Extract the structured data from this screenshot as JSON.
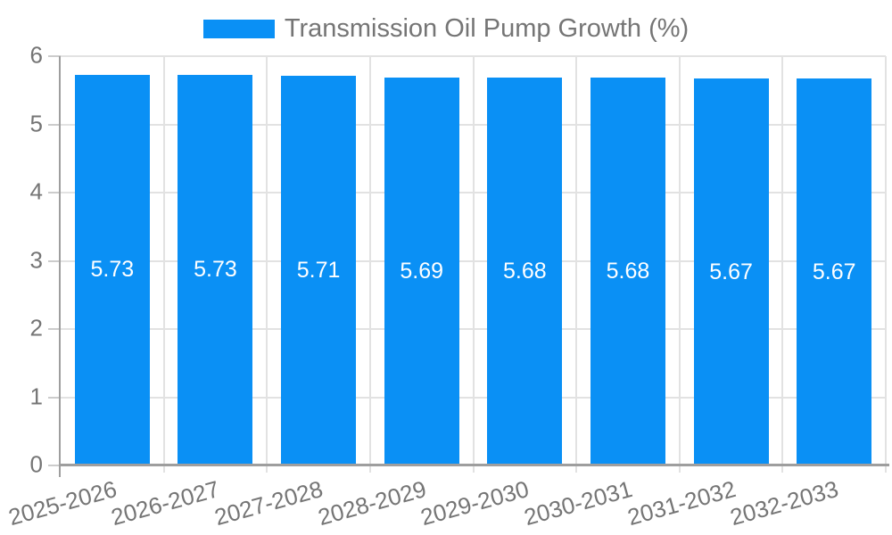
{
  "legend": {
    "label": "Transmission Oil Pump Growth (%)"
  },
  "chart_data": {
    "type": "bar",
    "title": "Transmission Oil Pump Growth (%)",
    "categories": [
      "2025-2026",
      "2026-2027",
      "2027-2028",
      "2028-2029",
      "2029-2030",
      "2030-2031",
      "2031-2032",
      "2032-2033"
    ],
    "values": [
      5.73,
      5.73,
      5.71,
      5.69,
      5.68,
      5.68,
      5.67,
      5.67
    ],
    "value_labels": [
      "5.73",
      "5.73",
      "5.71",
      "5.69",
      "5.68",
      "5.68",
      "5.67",
      "5.67"
    ],
    "xlabel": "",
    "ylabel": "",
    "ylim": [
      0,
      6
    ],
    "yticks": [
      0,
      1,
      2,
      3,
      4,
      5,
      6
    ],
    "grid": true,
    "legend_position": "top",
    "colors": {
      "bar": "#0a90f5",
      "value_label": "#ffffff",
      "axis_label": "#757575",
      "axis_line": "#9e9e9e",
      "gridline": "#e2e2e2",
      "tick": "#cccccc",
      "background": "#ffffff"
    }
  }
}
